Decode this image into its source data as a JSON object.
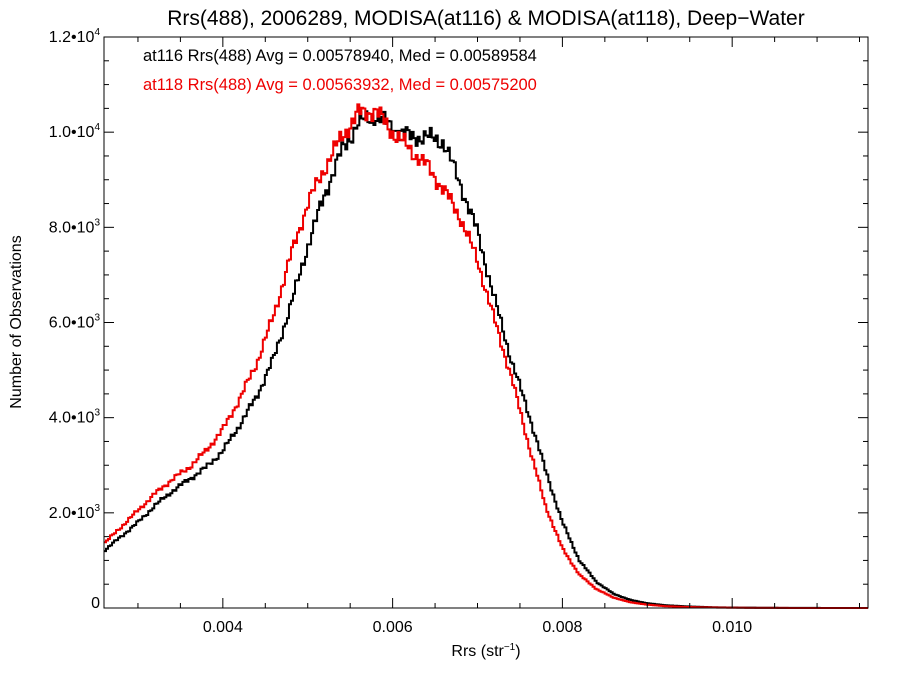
{
  "chart_data": {
    "type": "line",
    "title": "Rrs(488), 2006289, MODISA(at116) & MODISA(at118), Deep−Water",
    "xlabel": "Rrs (str",
    "xlabel_sup": "−1",
    "xlabel_suffix": ")",
    "ylabel": "Number of Observations",
    "xlim": [
      0.0026,
      0.0116
    ],
    "ylim": [
      0,
      12000
    ],
    "grid": false,
    "x_ticks": [
      {
        "value": 0.004,
        "label": "0.004"
      },
      {
        "value": 0.006,
        "label": "0.006"
      },
      {
        "value": 0.008,
        "label": "0.008"
      },
      {
        "value": 0.01,
        "label": "0.010"
      }
    ],
    "y_ticks": [
      {
        "value": 0,
        "mant": "0",
        "exp": ""
      },
      {
        "value": 2000,
        "mant": "2.0•10",
        "exp": "3"
      },
      {
        "value": 4000,
        "mant": "4.0•10",
        "exp": "3"
      },
      {
        "value": 6000,
        "mant": "6.0•10",
        "exp": "3"
      },
      {
        "value": 8000,
        "mant": "8.0•10",
        "exp": "3"
      },
      {
        "value": 10000,
        "mant": "1.0•10",
        "exp": "4"
      },
      {
        "value": 12000,
        "mant": "1.2•10",
        "exp": "4"
      }
    ],
    "annotations": [
      {
        "text": "at116 Rrs(488) Avg = 0.00578940, Med = 0.00589584",
        "color": "#000000"
      },
      {
        "text": "at118 Rrs(488) Avg = 0.00563932, Med = 0.00575200",
        "color": "#ee0000"
      }
    ],
    "series": [
      {
        "color": "#000000",
        "x": [
          0.0026,
          0.0028,
          0.003,
          0.0032,
          0.0034,
          0.0036,
          0.0038,
          0.004,
          0.0042,
          0.0044,
          0.0046,
          0.0048,
          0.005,
          0.0052,
          0.0054,
          0.0056,
          0.0058,
          0.006,
          0.0062,
          0.0064,
          0.0066,
          0.0068,
          0.007,
          0.0072,
          0.0074,
          0.0076,
          0.0078,
          0.008,
          0.0082,
          0.0084,
          0.0086,
          0.0088,
          0.009,
          0.0092,
          0.0094,
          0.0096,
          0.0098,
          0.01,
          0.0104,
          0.0108,
          0.0112,
          0.0116
        ],
        "values": [
          1200,
          1500,
          1800,
          2150,
          2450,
          2700,
          2950,
          3300,
          3850,
          4450,
          5250,
          6350,
          7600,
          8700,
          9600,
          10200,
          10350,
          10100,
          9900,
          9900,
          9800,
          8900,
          7900,
          6500,
          5200,
          4100,
          2900,
          1800,
          1000,
          550,
          300,
          170,
          100,
          60,
          40,
          25,
          15,
          10,
          5,
          2,
          1,
          0
        ]
      },
      {
        "color": "#ee0000",
        "x": [
          0.0026,
          0.0028,
          0.003,
          0.0032,
          0.0034,
          0.0036,
          0.0038,
          0.004,
          0.0042,
          0.0044,
          0.0046,
          0.0048,
          0.005,
          0.0052,
          0.0054,
          0.0056,
          0.0058,
          0.006,
          0.0062,
          0.0064,
          0.0066,
          0.0068,
          0.007,
          0.0072,
          0.0074,
          0.0076,
          0.0078,
          0.008,
          0.0082,
          0.0084,
          0.0086,
          0.0088,
          0.009,
          0.0092,
          0.0094,
          0.0096,
          0.0098,
          0.01,
          0.0104,
          0.0108,
          0.0112,
          0.0116
        ],
        "values": [
          1350,
          1700,
          2050,
          2400,
          2700,
          2950,
          3300,
          3750,
          4400,
          5150,
          6150,
          7400,
          8500,
          9250,
          9900,
          10400,
          10450,
          10000,
          9650,
          9300,
          8800,
          8200,
          7300,
          6050,
          4850,
          3450,
          2150,
          1250,
          700,
          400,
          220,
          120,
          70,
          40,
          25,
          15,
          10,
          5,
          2,
          1,
          0,
          0
        ]
      }
    ]
  }
}
